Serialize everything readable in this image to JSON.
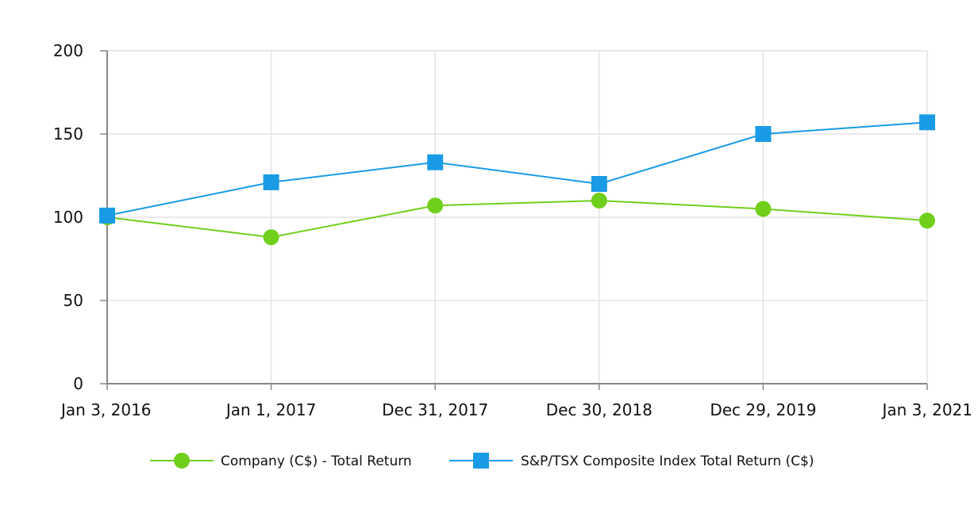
{
  "chart_data": {
    "type": "line",
    "title": "",
    "xlabel": "",
    "ylabel": "",
    "categories": [
      "Jan 3, 2016",
      "Jan 1, 2017",
      "Dec 31, 2017",
      "Dec 30, 2018",
      "Dec 29, 2019",
      "Jan 3, 2021"
    ],
    "ylim": [
      0,
      200
    ],
    "yticks": [
      0,
      50,
      100,
      150,
      200
    ],
    "grid": true,
    "legend_position": "bottom",
    "series": [
      {
        "name": "Company (C$) - Total Return",
        "marker": "circle",
        "color": "#6fcf1a",
        "values": [
          100,
          88,
          107,
          110,
          105,
          98
        ]
      },
      {
        "name": "S&P/TSX Composite Index Total Return (C$)",
        "marker": "square",
        "color": "#1a9be6",
        "values": [
          101,
          121,
          133,
          120,
          150,
          157
        ]
      }
    ]
  }
}
